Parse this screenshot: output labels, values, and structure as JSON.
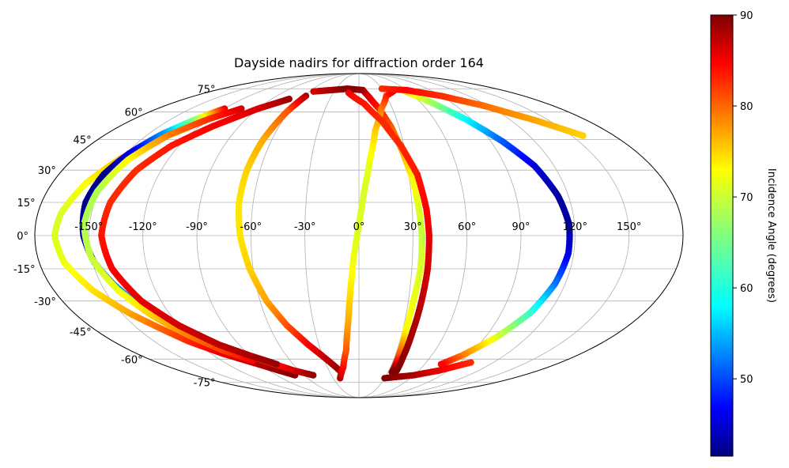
{
  "chart_data": {
    "type": "scatter",
    "projection": "mollweide",
    "title": "Dayside nadirs for diffraction order 164",
    "x_tick_labels": [
      "-150°",
      "-120°",
      "-90°",
      "-60°",
      "-30°",
      "0°",
      "30°",
      "60°",
      "90°",
      "120°",
      "150°"
    ],
    "x_ticks": [
      -150,
      -120,
      -90,
      -60,
      -30,
      0,
      30,
      60,
      90,
      120,
      150
    ],
    "y_tick_labels": [
      "-75°",
      "-60°",
      "-45°",
      "-30°",
      "-15°",
      "0°",
      "15°",
      "30°",
      "45°",
      "60°",
      "75°"
    ],
    "y_ticks": [
      -75,
      -60,
      -45,
      -30,
      -15,
      0,
      15,
      30,
      45,
      60,
      75
    ],
    "grid": true,
    "colormap": "jet",
    "colorbar": {
      "label": "Incidence Angle (degrees)",
      "range": [
        41.5,
        90
      ],
      "tick_labels": [
        "50",
        "60",
        "70",
        "80",
        "90"
      ],
      "ticks": [
        50,
        60,
        70,
        80,
        90
      ]
    },
    "series": [
      {
        "points": [
          {
            "lon": -150,
            "lat": 36,
            "inc": 75
          },
          {
            "lon": -160,
            "lat": 24,
            "inc": 72
          },
          {
            "lon": -167,
            "lat": 10,
            "inc": 70
          },
          {
            "lon": -169,
            "lat": 0,
            "inc": 70
          },
          {
            "lon": -166,
            "lat": -12,
            "inc": 71
          },
          {
            "lon": -157,
            "lat": -25,
            "inc": 73
          },
          {
            "lon": -145,
            "lat": -36,
            "inc": 76
          },
          {
            "lon": -135,
            "lat": -43,
            "inc": 79
          },
          {
            "lon": -125,
            "lat": -50,
            "inc": 82
          },
          {
            "lon": -110,
            "lat": -57,
            "inc": 85
          },
          {
            "lon": -95,
            "lat": -62,
            "inc": 87
          },
          {
            "lon": -80,
            "lat": -67,
            "inc": 89
          },
          {
            "lon": -70,
            "lat": -70,
            "inc": 90
          }
        ]
      },
      {
        "points": [
          {
            "lon": -120,
            "lat": 62,
            "inc": 85
          },
          {
            "lon": -130,
            "lat": 56,
            "inc": 68
          },
          {
            "lon": -140,
            "lat": 48,
            "inc": 55
          },
          {
            "lon": -148,
            "lat": 38,
            "inc": 46
          },
          {
            "lon": -153,
            "lat": 28,
            "inc": 42
          },
          {
            "lon": -155,
            "lat": 15,
            "inc": 42
          },
          {
            "lon": -153,
            "lat": 0,
            "inc": 44
          },
          {
            "lon": -149,
            "lat": -12,
            "inc": 48
          },
          {
            "lon": -143,
            "lat": -22,
            "inc": 53
          },
          {
            "lon": -135,
            "lat": -32,
            "inc": 58
          },
          {
            "lon": -125,
            "lat": -40,
            "inc": 63
          },
          {
            "lon": -115,
            "lat": -46,
            "inc": 68
          },
          {
            "lon": -105,
            "lat": -52,
            "inc": 73
          },
          {
            "lon": -90,
            "lat": -58,
            "inc": 78
          },
          {
            "lon": -80,
            "lat": -62,
            "inc": 82
          },
          {
            "lon": -65,
            "lat": -67,
            "inc": 86
          },
          {
            "lon": -50,
            "lat": -70,
            "inc": 89
          }
        ]
      },
      {
        "points": [
          {
            "lon": -105,
            "lat": 62,
            "inc": 86
          },
          {
            "lon": -120,
            "lat": 56,
            "inc": 82
          },
          {
            "lon": -135,
            "lat": 47,
            "inc": 78
          },
          {
            "lon": -145,
            "lat": 35,
            "inc": 72
          },
          {
            "lon": -151,
            "lat": 20,
            "inc": 68
          },
          {
            "lon": -153,
            "lat": 5,
            "inc": 68
          },
          {
            "lon": -150,
            "lat": -10,
            "inc": 69
          },
          {
            "lon": -142,
            "lat": -25,
            "inc": 71
          },
          {
            "lon": -132,
            "lat": -37,
            "inc": 74
          },
          {
            "lon": -120,
            "lat": -47,
            "inc": 78
          },
          {
            "lon": -107,
            "lat": -55,
            "inc": 81
          },
          {
            "lon": -93,
            "lat": -61,
            "inc": 84
          }
        ]
      },
      {
        "points": [
          {
            "lon": -72,
            "lat": 68,
            "inc": 89
          },
          {
            "lon": -90,
            "lat": 62,
            "inc": 86
          },
          {
            "lon": -110,
            "lat": 52,
            "inc": 84
          },
          {
            "lon": -125,
            "lat": 42,
            "inc": 83
          },
          {
            "lon": -135,
            "lat": 30,
            "inc": 82
          },
          {
            "lon": -141,
            "lat": 15,
            "inc": 82
          },
          {
            "lon": -143,
            "lat": 0,
            "inc": 83
          },
          {
            "lon": -140,
            "lat": -15,
            "inc": 84
          },
          {
            "lon": -132,
            "lat": -30,
            "inc": 85
          },
          {
            "lon": -120,
            "lat": -42,
            "inc": 86
          },
          {
            "lon": -105,
            "lat": -52,
            "inc": 87
          },
          {
            "lon": -90,
            "lat": -58,
            "inc": 88
          },
          {
            "lon": -75,
            "lat": -63,
            "inc": 89
          }
        ]
      },
      {
        "points": [
          {
            "lon": -58,
            "lat": 70,
            "inc": 88
          },
          {
            "lon": -62,
            "lat": 60,
            "inc": 80
          },
          {
            "lon": -66,
            "lat": 45,
            "inc": 76
          },
          {
            "lon": -68,
            "lat": 30,
            "inc": 74
          },
          {
            "lon": -68,
            "lat": 15,
            "inc": 73
          },
          {
            "lon": -66,
            "lat": 0,
            "inc": 73
          },
          {
            "lon": -62,
            "lat": -15,
            "inc": 74
          },
          {
            "lon": -56,
            "lat": -30,
            "inc": 76
          },
          {
            "lon": -48,
            "lat": -42,
            "inc": 80
          },
          {
            "lon": -38,
            "lat": -52,
            "inc": 84
          },
          {
            "lon": -28,
            "lat": -60,
            "inc": 87
          },
          {
            "lon": -18,
            "lat": -68,
            "inc": 89
          }
        ]
      },
      {
        "points": [
          {
            "lon": -55,
            "lat": 73,
            "inc": 86
          },
          {
            "lon": -35,
            "lat": 74,
            "inc": 88
          },
          {
            "lon": -15,
            "lat": 75,
            "inc": 90
          },
          {
            "lon": 5,
            "lat": 74,
            "inc": 89
          },
          {
            "lon": 10,
            "lat": 70,
            "inc": 86
          },
          {
            "lon": 18,
            "lat": 62,
            "inc": 83
          },
          {
            "lon": 24,
            "lat": 52,
            "inc": 80
          },
          {
            "lon": 28,
            "lat": 40,
            "inc": 76
          },
          {
            "lon": 32,
            "lat": 25,
            "inc": 72
          },
          {
            "lon": 34,
            "lat": 10,
            "inc": 70
          },
          {
            "lon": 35,
            "lat": 0,
            "inc": 69
          },
          {
            "lon": 35,
            "lat": -15,
            "inc": 70
          },
          {
            "lon": 33,
            "lat": -30,
            "inc": 71
          },
          {
            "lon": 32,
            "lat": -45,
            "inc": 72
          },
          {
            "lon": 33,
            "lat": -58,
            "inc": 80
          },
          {
            "lon": 34,
            "lat": -68,
            "inc": 90
          }
        ]
      },
      {
        "points": [
          {
            "lon": -22,
            "lat": -72,
            "inc": 88
          },
          {
            "lon": -15,
            "lat": -65,
            "inc": 84
          },
          {
            "lon": -10,
            "lat": -55,
            "inc": 80
          },
          {
            "lon": -7,
            "lat": -40,
            "inc": 76
          },
          {
            "lon": -5,
            "lat": -25,
            "inc": 73
          },
          {
            "lon": -3,
            "lat": -10,
            "inc": 71
          },
          {
            "lon": 0,
            "lat": 5,
            "inc": 70
          },
          {
            "lon": 3,
            "lat": 20,
            "inc": 70
          },
          {
            "lon": 7,
            "lat": 35,
            "inc": 71
          },
          {
            "lon": 12,
            "lat": 50,
            "inc": 74
          },
          {
            "lon": 20,
            "lat": 62,
            "inc": 78
          },
          {
            "lon": 30,
            "lat": 70,
            "inc": 82
          },
          {
            "lon": 45,
            "lat": 74,
            "inc": 86
          }
        ]
      },
      {
        "points": [
          {
            "lon": -12,
            "lat": 72,
            "inc": 84
          },
          {
            "lon": 5,
            "lat": 65,
            "inc": 83
          },
          {
            "lon": 18,
            "lat": 55,
            "inc": 82
          },
          {
            "lon": 28,
            "lat": 42,
            "inc": 82
          },
          {
            "lon": 35,
            "lat": 28,
            "inc": 83
          },
          {
            "lon": 38,
            "lat": 12,
            "inc": 84
          },
          {
            "lon": 39,
            "lat": 0,
            "inc": 85
          },
          {
            "lon": 39,
            "lat": -15,
            "inc": 86
          },
          {
            "lon": 38,
            "lat": -30,
            "inc": 87
          },
          {
            "lon": 37,
            "lat": -45,
            "inc": 88
          },
          {
            "lon": 37,
            "lat": -58,
            "inc": 89
          },
          {
            "lon": 38,
            "lat": -68,
            "inc": 90
          }
        ]
      },
      {
        "points": [
          {
            "lon": 55,
            "lat": 74,
            "inc": 75
          },
          {
            "lon": 70,
            "lat": 66,
            "inc": 68
          },
          {
            "lon": 85,
            "lat": 56,
            "inc": 60
          },
          {
            "lon": 98,
            "lat": 44,
            "inc": 52
          },
          {
            "lon": 108,
            "lat": 32,
            "inc": 46
          },
          {
            "lon": 114,
            "lat": 18,
            "inc": 43
          },
          {
            "lon": 117,
            "lat": 5,
            "inc": 43
          },
          {
            "lon": 117,
            "lat": -8,
            "inc": 46
          },
          {
            "lon": 114,
            "lat": -22,
            "inc": 53
          },
          {
            "lon": 108,
            "lat": -36,
            "inc": 62
          },
          {
            "lon": 98,
            "lat": -48,
            "inc": 70
          },
          {
            "lon": 85,
            "lat": -58,
            "inc": 78
          },
          {
            "lon": 75,
            "lat": -63,
            "inc": 84
          }
        ]
      },
      {
        "points": [
          {
            "lon": 30,
            "lat": 75,
            "inc": 82
          },
          {
            "lon": 60,
            "lat": 74,
            "inc": 84
          },
          {
            "lon": 90,
            "lat": 70,
            "inc": 82
          },
          {
            "lon": 115,
            "lat": 64,
            "inc": 79
          },
          {
            "lon": 140,
            "lat": 55,
            "inc": 76
          },
          {
            "lon": 158,
            "lat": 47,
            "inc": 74
          }
        ]
      },
      {
        "points": [
          {
            "lon": 30,
            "lat": -72,
            "inc": 90
          },
          {
            "lon": 60,
            "lat": -70,
            "inc": 88
          },
          {
            "lon": 80,
            "lat": -67,
            "inc": 85
          },
          {
            "lon": 100,
            "lat": -62,
            "inc": 82
          }
        ]
      }
    ]
  }
}
